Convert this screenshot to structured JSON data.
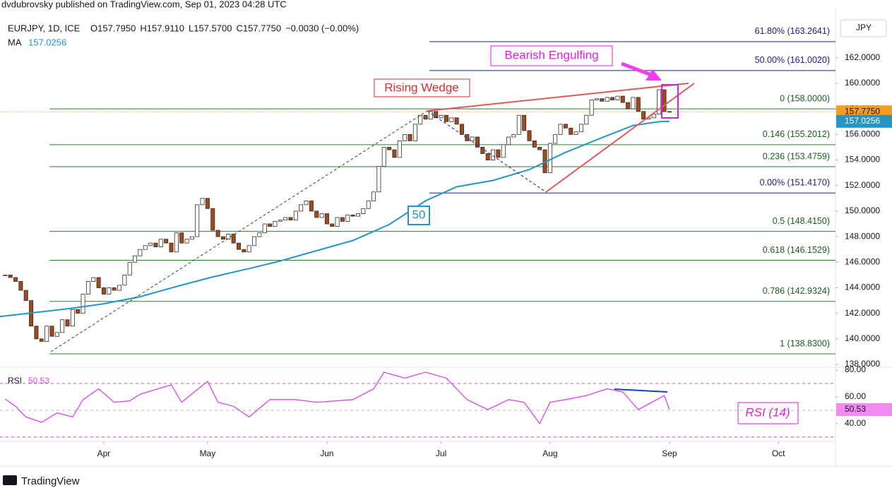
{
  "page": {
    "attribution": "dvdubrovsky published on TradingView.com, Sep 01, 2023 04:28 UTC",
    "brand": "TradingView"
  },
  "chart_data": {
    "type": "candlestick",
    "title": "EURJPY, 1D, ICE",
    "ohlc_text": [
      "O157.7950",
      "H157.9110",
      "L157.5700",
      "C157.7750",
      "−0.0030 (−0.00%)"
    ],
    "currency": "JPY",
    "up_color": "#ffffff",
    "down_color": "#9c4a1f",
    "values": [
      145,
      144.8,
      144.5,
      143.8,
      143,
      141,
      140,
      139.8,
      141,
      140.2,
      140.5,
      141.5,
      141,
      142.3,
      142,
      143.5,
      144.5,
      144.8,
      144,
      143.5,
      144,
      143.8,
      144.2,
      145,
      146,
      146.5,
      147,
      147.3,
      147.5,
      147.2,
      147.8,
      147.5,
      146.8,
      148.3,
      147.5,
      147.8,
      148,
      150.5,
      151,
      150.2,
      148.5,
      148,
      147.8,
      148.2,
      147.5,
      147,
      146.8,
      147.3,
      148,
      148.3,
      149,
      148.8,
      149.2,
      149.3,
      149.5,
      149.3,
      150,
      150.5,
      150.8,
      150,
      149.5,
      149.8,
      149,
      148.8,
      149.5,
      149.2,
      149.7,
      149.6,
      149.8,
      150.2,
      150.8,
      151.5,
      153.5,
      155,
      154.8,
      154.2,
      155.5,
      156,
      155.5,
      156.8,
      157.5,
      157.2,
      157.8,
      157.3,
      157.5,
      157,
      157.3,
      156.8,
      156,
      155.5,
      155.8,
      155,
      154.5,
      154,
      154.8,
      154.2,
      155.2,
      155.8,
      156,
      157.5,
      156.3,
      155.5,
      155,
      154.8,
      153,
      155.3,
      156,
      156.8,
      156.5,
      156,
      156.2,
      156.8,
      157.5,
      158.7,
      158.8,
      158.6,
      158.9,
      158.7,
      159,
      158.5,
      158,
      158.9,
      157.8,
      157.2,
      157.3,
      157.6,
      159.5,
      157.795,
      157.775
    ],
    "last_price": {
      "value": 157.775,
      "label": "157.7750"
    },
    "xlim": [
      -1,
      160
    ],
    "xticks": [
      {
        "value": 19,
        "label": "Apr"
      },
      {
        "value": 39,
        "label": "May"
      },
      {
        "value": 62,
        "label": "Jun"
      },
      {
        "value": 84,
        "label": "Jul"
      },
      {
        "value": 105,
        "label": "Aug"
      },
      {
        "value": 128,
        "label": "Sep"
      },
      {
        "value": 149,
        "label": "Oct"
      }
    ],
    "ylim": [
      137.78,
      165.03
    ],
    "yticks": [
      {
        "value": 138,
        "label": "138.0000"
      },
      {
        "value": 140,
        "label": "140.0000"
      },
      {
        "value": 142,
        "label": "142.0000"
      },
      {
        "value": 144,
        "label": "144.0000"
      },
      {
        "value": 146,
        "label": "146.0000"
      },
      {
        "value": 148,
        "label": "148.0000"
      },
      {
        "value": 150,
        "label": "150.0000"
      },
      {
        "value": 152,
        "label": "152.0000"
      },
      {
        "value": 154,
        "label": "154.0000"
      },
      {
        "value": 156,
        "label": "156.0000"
      },
      {
        "value": 158,
        "label": "158.0000"
      },
      {
        "value": 160,
        "label": "160.0000"
      },
      {
        "value": 162,
        "label": "162.0000"
      }
    ],
    "ma": {
      "name": "MA",
      "color": "#2196c9",
      "x": [
        -1,
        13,
        19,
        26,
        33,
        40,
        47,
        53,
        60,
        67,
        74,
        81,
        87,
        94,
        101,
        108,
        115,
        121,
        126,
        128
      ],
      "values": [
        141.75,
        142.4,
        142.75,
        143.3,
        144.1,
        144.85,
        145.5,
        146.1,
        146.9,
        147.7,
        148.95,
        150.8,
        151.9,
        152.4,
        153.25,
        154.6,
        155.75,
        156.7,
        157,
        157.0256
      ]
    },
    "fib": [
      {
        "label": "61.80% (163.2641)",
        "value": 163.2641
      },
      {
        "label": "50.00% (161.0020)",
        "value": 161.002
      },
      {
        "label": "0 (158.0000)",
        "value": 158
      },
      {
        "label": "0.146 (155.2012)",
        "value": 155.2012
      },
      {
        "label": "0.236 (153.4759)",
        "value": 153.4759
      },
      {
        "label": "0.00% (151.4170)",
        "value": 151.417
      },
      {
        "label": "0.5 (148.4150)",
        "value": 148.415
      },
      {
        "label": "0.618 (146.1529)",
        "value": 146.1529
      },
      {
        "label": "0.786 (142.9324)",
        "value": 142.9324
      },
      {
        "label": "1 (138.8300)",
        "value": 138.83
      }
    ],
    "annotations": [
      "Rising Wedge",
      "Bearish Engulfing",
      "50",
      "RSI (14)"
    ],
    "rsi": {
      "name": "RSI",
      "color": "#d946ef",
      "x": [
        0,
        2,
        4,
        7,
        10,
        13,
        15,
        18,
        21,
        24,
        26,
        32,
        34,
        39,
        41,
        44,
        47,
        51,
        56,
        60,
        67,
        71,
        73,
        77,
        81,
        85,
        89,
        93,
        97,
        100,
        103,
        105,
        108,
        112,
        116,
        119,
        122,
        124,
        127,
        128
      ],
      "values": [
        58.4,
        53,
        45,
        41,
        48,
        45,
        58,
        66,
        56,
        57,
        62,
        69,
        56,
        71.6,
        56,
        53,
        45,
        58,
        58,
        56,
        58,
        66,
        78.4,
        74,
        78.4,
        74,
        58,
        50.5,
        58,
        56,
        40,
        56,
        58,
        61,
        66,
        63.7,
        50.5,
        54.7,
        61,
        50.53
      ],
      "ylim": [
        26.8,
        82.1
      ],
      "yticks": [
        {
          "value": 40,
          "label": "40.00"
        },
        {
          "value": 60,
          "label": "60.00"
        },
        {
          "value": 80,
          "label": "80.00"
        }
      ],
      "bands": [
        70,
        30
      ],
      "mid": 50
    }
  }
}
